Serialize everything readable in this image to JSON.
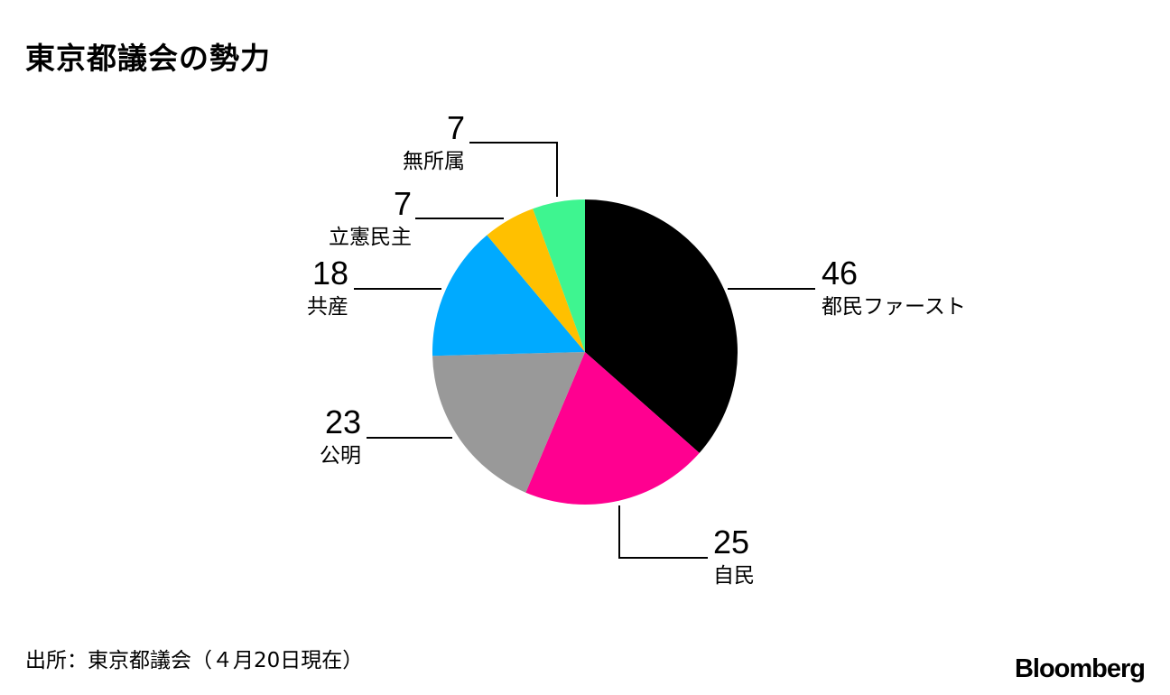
{
  "header": {
    "title": "東京都議会の勢力"
  },
  "footer": {
    "source": "出所：東京都議会（４月20日現在）",
    "brand": "Bloomberg"
  },
  "chart_data": {
    "type": "pie",
    "title": "東京都議会の勢力",
    "start_angle_deg": 0,
    "direction": "clockwise",
    "slices": [
      {
        "label": "都民ファースト",
        "value": 46,
        "color": "#000000"
      },
      {
        "label": "自民",
        "value": 25,
        "color": "#ff0090"
      },
      {
        "label": "公明",
        "value": 23,
        "color": "#999999"
      },
      {
        "label": "共産",
        "value": 18,
        "color": "#00aaff"
      },
      {
        "label": "立憲民主",
        "value": 7,
        "color": "#ffc000"
      },
      {
        "label": "無所属",
        "value": 7,
        "color": "#3ef590"
      }
    ]
  }
}
